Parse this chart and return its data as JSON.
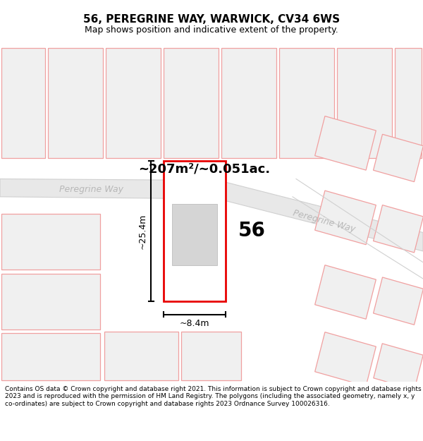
{
  "title": "56, PEREGRINE WAY, WARWICK, CV34 6WS",
  "subtitle": "Map shows position and indicative extent of the property.",
  "footer": "Contains OS data © Crown copyright and database right 2021. This information is subject to Crown copyright and database rights 2023 and is reproduced with the permission of HM Land Registry. The polygons (including the associated geometry, namely x, y co-ordinates) are subject to Crown copyright and database rights 2023 Ordnance Survey 100026316.",
  "bg_color": "#ffffff",
  "area_text": "~207m²/~0.051ac.",
  "width_text": "~8.4m",
  "height_text": "~25.4m",
  "number_text": "56",
  "road_label1": "Peregrine Way",
  "road_label2": "Peregrine Way",
  "neighbor_fill": "#f0f0f0",
  "neighbor_edge": "#f0a0a0",
  "road_fill": "#e8e8e8",
  "road_edge": "#d0d0d0",
  "plot_edge": "#ff0000",
  "dim_color": "#000000",
  "title_fontsize": 11,
  "subtitle_fontsize": 9,
  "footer_fontsize": 6.5
}
